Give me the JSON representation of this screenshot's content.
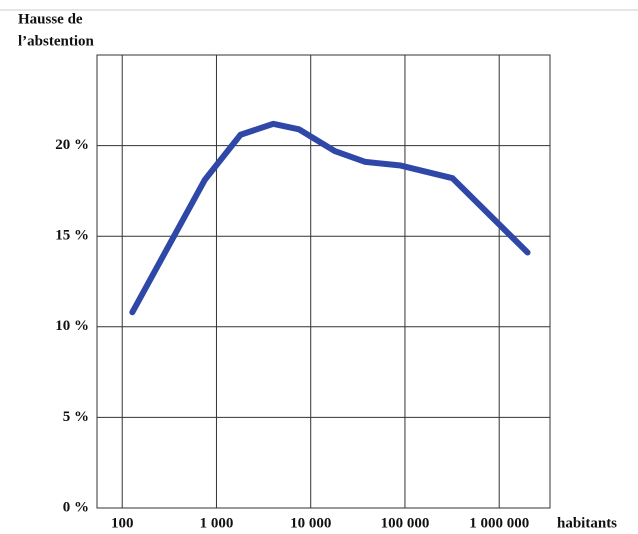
{
  "chart_data": {
    "type": "line",
    "ylabel": [
      "Hausse de",
      "l’abstention"
    ],
    "xlabel": "habitants",
    "x": [
      128,
      750,
      1800,
      4000,
      7500,
      18000,
      38000,
      90000,
      320000,
      2000000
    ],
    "series": [
      {
        "name": null,
        "color": "#2f48a8",
        "values": [
          10.8,
          18.1,
          20.6,
          21.2,
          20.9,
          19.7,
          19.1,
          18.9,
          18.2,
          14.1
        ]
      }
    ],
    "xscale": "log",
    "xlim": [
      54,
      3460000
    ],
    "xticks": [
      100,
      {
        "value": 1000,
        "label": "1 000"
      },
      {
        "value": 10000,
        "label": "10 000"
      },
      {
        "value": 100000,
        "label": "100 000"
      },
      {
        "value": 1000000,
        "label": "1 000 000"
      }
    ],
    "ylim": [
      0,
      25
    ],
    "yticks": [
      {
        "value": 0,
        "label": "0 %"
      },
      {
        "value": 5,
        "label": "5 %"
      },
      {
        "value": 10,
        "label": "10 %"
      },
      {
        "value": 15,
        "label": "15 %"
      },
      {
        "value": 20,
        "label": "20 %"
      }
    ],
    "grid": true
  }
}
